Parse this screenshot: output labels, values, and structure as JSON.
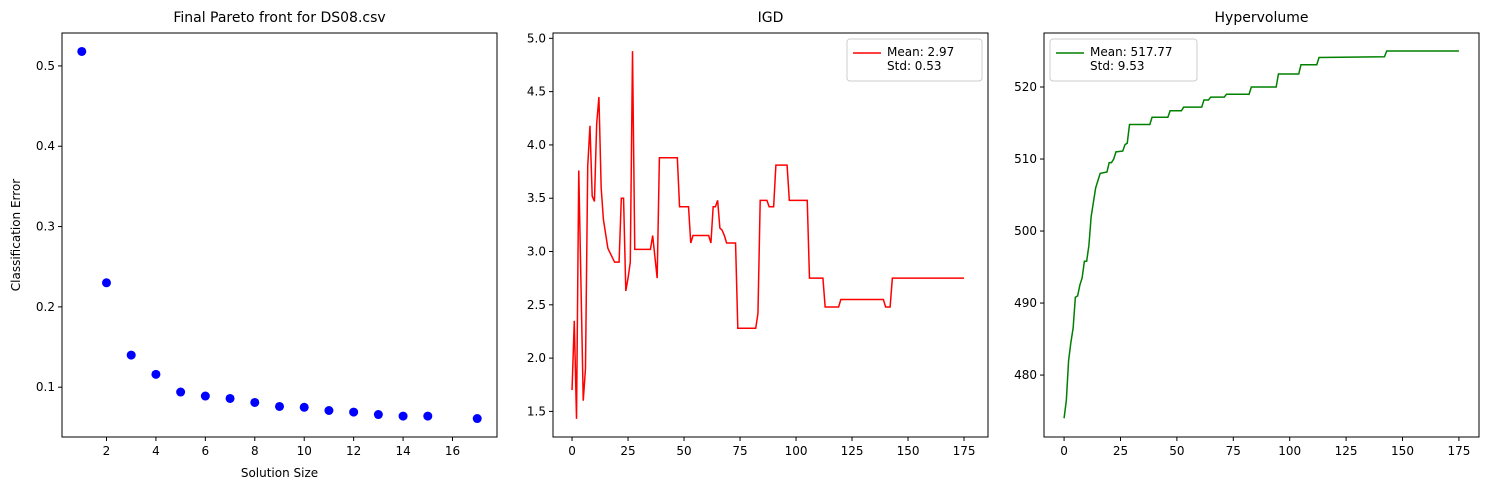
{
  "chart_data": [
    {
      "type": "scatter",
      "title": "Final Pareto front for DS08.csv",
      "xlabel": "Solution Size",
      "ylabel": "Classification Error",
      "color": "#0000ff",
      "x": [
        1,
        2,
        3,
        4,
        5,
        6,
        7,
        8,
        9,
        10,
        11,
        12,
        13,
        14,
        15,
        17
      ],
      "values": [
        0.518,
        0.23,
        0.14,
        0.116,
        0.094,
        0.089,
        0.086,
        0.081,
        0.076,
        0.075,
        0.071,
        0.069,
        0.066,
        0.064,
        0.064,
        0.061
      ],
      "xlim": [
        0.2,
        17.8
      ],
      "ylim": [
        0.038,
        0.541
      ],
      "xticks": [
        2,
        4,
        6,
        8,
        10,
        12,
        14,
        16
      ],
      "yticks": [
        0.1,
        0.2,
        0.3,
        0.4,
        0.5
      ]
    },
    {
      "type": "line",
      "title": "IGD",
      "legend": "upper right",
      "x": [
        0,
        1,
        2,
        3,
        5,
        6,
        7,
        8,
        9,
        10,
        11,
        12,
        13,
        14,
        16,
        19,
        21,
        22,
        23,
        24,
        25,
        26,
        27,
        28,
        35,
        36,
        37,
        38,
        39,
        47,
        48,
        52,
        53,
        54,
        61,
        62,
        63,
        64,
        65,
        66,
        67,
        68,
        69,
        73,
        74,
        82,
        83,
        84,
        87,
        88,
        90,
        91,
        96,
        97,
        105,
        106,
        112,
        113,
        119,
        120,
        139,
        140,
        142,
        143,
        175
      ],
      "series": [
        {
          "name": "Mean: 2.97\nStd: 0.53",
          "color": "#ff0000",
          "values": [
            1.7,
            2.35,
            1.43,
            3.76,
            1.6,
            1.9,
            3.8,
            4.18,
            3.52,
            3.47,
            4.2,
            4.45,
            3.6,
            3.3,
            3.03,
            2.9,
            2.9,
            3.5,
            3.5,
            2.63,
            2.75,
            2.9,
            4.88,
            3.02,
            3.02,
            3.15,
            2.95,
            2.75,
            3.88,
            3.88,
            3.42,
            3.42,
            3.08,
            3.15,
            3.15,
            3.08,
            3.42,
            3.42,
            3.48,
            3.22,
            3.2,
            3.15,
            3.08,
            3.08,
            2.28,
            2.28,
            2.42,
            3.48,
            3.48,
            3.42,
            3.42,
            3.81,
            3.81,
            3.48,
            3.48,
            2.75,
            2.75,
            2.48,
            2.48,
            2.55,
            2.55,
            2.48,
            2.48,
            2.75,
            2.75
          ]
        }
      ],
      "xlim": [
        -8.5,
        185.7
      ],
      "ylim": [
        1.26,
        5.05
      ],
      "xticks": [
        0,
        25,
        50,
        75,
        100,
        125,
        150,
        175
      ],
      "yticks": [
        1.5,
        {
          "value": 2,
          "label": "2.0"
        },
        2.5,
        {
          "value": 3,
          "label": "3.0"
        },
        3.5,
        {
          "value": 4,
          "label": "4.0"
        },
        4.5,
        {
          "value": 5,
          "label": "5.0"
        }
      ]
    },
    {
      "type": "line",
      "title": "Hypervolume",
      "legend": "upper left",
      "x": [
        0,
        1,
        2,
        3,
        4,
        5,
        6,
        7,
        8,
        9,
        10,
        11,
        12,
        13,
        14,
        15,
        16,
        19,
        20,
        21,
        22,
        23,
        26,
        27,
        28,
        29,
        38,
        39,
        46,
        47,
        52,
        53,
        61,
        62,
        64,
        65,
        71,
        72,
        82,
        83,
        94,
        95,
        104,
        105,
        112,
        113,
        142,
        143,
        175
      ],
      "series": [
        {
          "name": "Mean: 517.77\nStd: 9.53",
          "color": "#008000",
          "values": [
            474,
            476.5,
            482,
            484.5,
            486.5,
            490.8,
            491,
            492.5,
            493.5,
            495.8,
            495.8,
            498,
            502,
            504,
            506,
            507,
            508,
            508.2,
            509.5,
            509.5,
            510,
            511,
            511.1,
            512,
            512.2,
            514.8,
            514.8,
            515.8,
            515.8,
            516.7,
            516.7,
            517.2,
            517.2,
            518.2,
            518.2,
            518.6,
            518.6,
            519,
            519,
            520,
            520,
            521.8,
            521.8,
            523.1,
            523.1,
            524.1,
            524.2,
            525,
            525
          ]
        }
      ],
      "xlim": [
        -8.9,
        183.9
      ],
      "ylim": [
        471.4,
        527.5
      ],
      "xticks": [
        0,
        25,
        50,
        75,
        100,
        125,
        150,
        175
      ],
      "yticks": [
        480,
        490,
        500,
        510,
        520
      ]
    }
  ]
}
